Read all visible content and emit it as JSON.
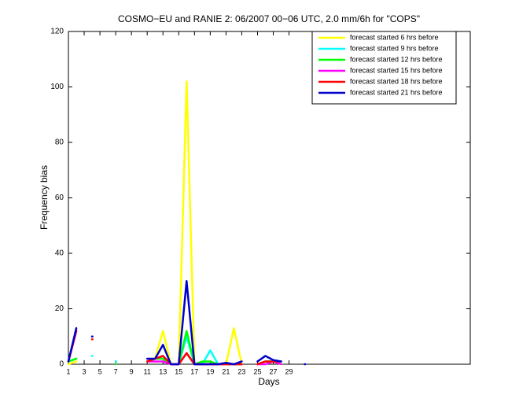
{
  "chart_data": {
    "type": "line",
    "title": "COSMO−EU and RANIE 2: 06/2007 00−06 UTC, 2.0 mm/6h for \"COPS\"",
    "x_label": "Days",
    "y_label": "Frequency bias",
    "x": [
      1,
      2,
      3,
      4,
      5,
      6,
      7,
      8,
      9,
      10,
      11,
      12,
      13,
      14,
      15,
      16,
      17,
      18,
      19,
      20,
      21,
      22,
      23,
      24,
      25,
      26,
      27,
      28,
      29,
      30,
      31
    ],
    "series": [
      {
        "name": "forecast started 6 hrs before",
        "color": "#ffff00",
        "values": [
          0,
          1,
          null,
          null,
          null,
          null,
          null,
          null,
          null,
          null,
          1,
          2,
          12,
          0,
          0,
          102,
          0,
          0,
          0,
          0,
          0,
          13,
          0,
          null,
          0,
          1,
          1,
          0,
          null,
          null,
          null
        ]
      },
      {
        "name": "forecast started 9 hrs before",
        "color": "#00ffff",
        "values": [
          1,
          2,
          null,
          3,
          null,
          null,
          1,
          null,
          null,
          null,
          1,
          2,
          3,
          0,
          0,
          10,
          0,
          0,
          5,
          0,
          0,
          0,
          0,
          null,
          0,
          1,
          1,
          1,
          null,
          null,
          null
        ]
      },
      {
        "name": "forecast started 12 hrs before",
        "color": "#00ff00",
        "values": [
          1,
          2,
          null,
          10,
          null,
          null,
          0,
          null,
          null,
          null,
          1,
          2,
          2,
          0,
          0,
          12,
          0,
          1,
          1,
          0,
          0,
          0,
          0,
          null,
          0,
          1,
          1,
          1,
          null,
          null,
          null
        ]
      },
      {
        "name": "forecast started 15 hrs before",
        "color": "#ff00ff",
        "values": [
          1,
          12,
          null,
          10,
          null,
          null,
          null,
          null,
          null,
          null,
          1,
          1,
          1,
          0,
          0,
          4,
          0,
          0,
          0,
          0,
          0,
          0,
          0,
          null,
          0,
          0,
          1,
          0,
          null,
          null,
          null
        ]
      },
      {
        "name": "forecast started 18 hrs before",
        "color": "#ff0000",
        "values": [
          1,
          12,
          null,
          9,
          null,
          null,
          null,
          null,
          null,
          null,
          1,
          2,
          3,
          0,
          0,
          4,
          0,
          0,
          0,
          0,
          0,
          0,
          0,
          null,
          0,
          1,
          1,
          1,
          null,
          null,
          null
        ]
      },
      {
        "name": "forecast started 21 hrs before",
        "color": "#0000cc",
        "values": [
          1,
          13,
          null,
          10,
          null,
          null,
          null,
          null,
          null,
          null,
          2,
          2,
          7,
          0,
          0,
          30,
          0,
          0,
          0,
          0,
          0.5,
          0,
          1,
          null,
          1,
          3,
          1.5,
          1,
          null,
          null,
          0
        ]
      }
    ],
    "xlim": [
      1,
      52
    ],
    "xticks": [
      1,
      3,
      5,
      7,
      9,
      11,
      13,
      15,
      17,
      19,
      21,
      23,
      25,
      27,
      29
    ],
    "ylim": [
      0,
      120
    ],
    "yticks": [
      0,
      20,
      40,
      60,
      80,
      100,
      120
    ],
    "legend": "northeast"
  }
}
